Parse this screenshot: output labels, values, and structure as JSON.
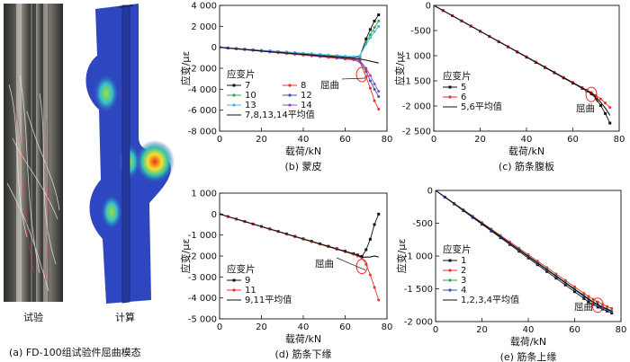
{
  "figure": {
    "label_a": "(a) FD-100组试验件屈曲模态",
    "label_test": "试验",
    "label_calc": "计算"
  },
  "chart_data": [
    {
      "id": "b",
      "type": "line",
      "caption": "(b) 蒙皮",
      "xlabel": "载荷/kN",
      "ylabel": "应变/με",
      "xlim": [
        0,
        80
      ],
      "ylim": [
        -8000,
        4000
      ],
      "xticks": [
        0,
        20,
        40,
        60,
        80
      ],
      "yticks": [
        4000,
        2000,
        0,
        -2000,
        -4000,
        -6000,
        -8000
      ],
      "ytick_labels": [
        "4 000",
        "2 000",
        "0",
        "-2 000",
        "-4 000",
        "-6 000",
        "-8 000"
      ],
      "legend_title": "应变片",
      "annotation": "屈曲",
      "legend_cols": 2,
      "series": [
        {
          "name": "7",
          "color": "#111111",
          "marker": "square",
          "x": [
            0,
            4,
            8,
            12,
            16,
            20,
            24,
            28,
            32,
            36,
            40,
            44,
            48,
            52,
            56,
            60,
            64,
            67,
            70,
            72,
            74,
            76
          ],
          "y": [
            0,
            -60,
            -120,
            -180,
            -240,
            -300,
            -360,
            -420,
            -480,
            -540,
            -600,
            -660,
            -720,
            -780,
            -840,
            -900,
            -960,
            -900,
            800,
            1700,
            2500,
            3100
          ]
        },
        {
          "name": "8",
          "color": "#e8322c",
          "marker": "circle",
          "x": [
            0,
            4,
            8,
            12,
            16,
            20,
            24,
            28,
            32,
            36,
            40,
            44,
            48,
            52,
            56,
            60,
            64,
            67,
            70,
            72,
            74,
            76
          ],
          "y": [
            0,
            -75,
            -150,
            -225,
            -300,
            -375,
            -450,
            -525,
            -600,
            -675,
            -750,
            -825,
            -900,
            -975,
            -1050,
            -1125,
            -1200,
            -1400,
            -2800,
            -3900,
            -5100,
            -5900
          ]
        },
        {
          "name": "10",
          "color": "#2ba84a",
          "marker": "circle",
          "x": [
            0,
            4,
            8,
            12,
            16,
            20,
            24,
            28,
            32,
            36,
            40,
            44,
            48,
            52,
            56,
            60,
            64,
            67,
            70,
            72,
            74,
            76
          ],
          "y": [
            0,
            -58,
            -116,
            -174,
            -232,
            -290,
            -348,
            -406,
            -464,
            -522,
            -580,
            -638,
            -696,
            -754,
            -812,
            -870,
            -928,
            -860,
            500,
            1200,
            1900,
            2500
          ]
        },
        {
          "name": "12",
          "color": "#3a4fc4",
          "marker": "circle",
          "x": [
            0,
            4,
            8,
            12,
            16,
            20,
            24,
            28,
            32,
            36,
            40,
            44,
            48,
            52,
            56,
            60,
            64,
            67,
            70,
            72,
            74,
            76
          ],
          "y": [
            0,
            -70,
            -140,
            -210,
            -280,
            -350,
            -420,
            -490,
            -560,
            -630,
            -700,
            -770,
            -840,
            -910,
            -980,
            -1050,
            -1120,
            -1300,
            -2300,
            -3200,
            -4000,
            -4700
          ]
        },
        {
          "name": "13",
          "color": "#43b7d6",
          "marker": "circle",
          "x": [
            0,
            4,
            8,
            12,
            16,
            20,
            24,
            28,
            32,
            36,
            40,
            44,
            48,
            52,
            56,
            60,
            64,
            67,
            70,
            72,
            74,
            76
          ],
          "y": [
            0,
            -56,
            -112,
            -168,
            -224,
            -280,
            -336,
            -392,
            -448,
            -504,
            -560,
            -616,
            -672,
            -728,
            -784,
            -840,
            -896,
            -820,
            300,
            900,
            1500,
            2000
          ]
        },
        {
          "name": "14",
          "color": "#9b45c6",
          "marker": "circle",
          "x": [
            0,
            4,
            8,
            12,
            16,
            20,
            24,
            28,
            32,
            36,
            40,
            44,
            48,
            52,
            56,
            60,
            64,
            67,
            70,
            72,
            74,
            76
          ],
          "y": [
            0,
            -68,
            -136,
            -204,
            -272,
            -340,
            -408,
            -476,
            -544,
            -612,
            -680,
            -748,
            -816,
            -884,
            -952,
            -1020,
            -1088,
            -1250,
            -2000,
            -2700,
            -3500,
            -4200
          ]
        },
        {
          "name": "7,8,13,14平均值",
          "color": "#111111",
          "marker": "none",
          "x": [
            0,
            20,
            40,
            60,
            64,
            67,
            70,
            76
          ],
          "y": [
            0,
            -350,
            -680,
            -1000,
            -1050,
            -1120,
            -1230,
            -1500
          ]
        }
      ]
    },
    {
      "id": "c",
      "type": "line",
      "caption": "(c) 筋条腹板",
      "xlabel": "载荷/kN",
      "ylabel": "应变/με",
      "xlim": [
        0,
        80
      ],
      "ylim": [
        -2500,
        0
      ],
      "xticks": [
        0,
        20,
        40,
        60,
        80
      ],
      "yticks": [
        0,
        -500,
        -1000,
        -1500,
        -2000,
        -2500
      ],
      "ytick_labels": [
        "0",
        "-500",
        "-1 000",
        "-1 500",
        "-2 000",
        "-2 500"
      ],
      "legend_title": "应变片",
      "annotation": "屈曲",
      "legend_cols": 1,
      "series": [
        {
          "name": "5",
          "color": "#111111",
          "marker": "square",
          "x": [
            0,
            4,
            8,
            12,
            16,
            20,
            24,
            28,
            32,
            36,
            40,
            44,
            48,
            52,
            56,
            60,
            64,
            66,
            68,
            70,
            72,
            74,
            76
          ],
          "y": [
            0,
            -103,
            -206,
            -309,
            -412,
            -515,
            -618,
            -721,
            -824,
            -927,
            -1030,
            -1133,
            -1236,
            -1339,
            -1442,
            -1545,
            -1648,
            -1700,
            -1760,
            -1850,
            -1990,
            -2150,
            -2340
          ]
        },
        {
          "name": "6",
          "color": "#e8322c",
          "marker": "circle",
          "x": [
            0,
            4,
            8,
            12,
            16,
            20,
            24,
            28,
            32,
            36,
            40,
            44,
            48,
            52,
            56,
            60,
            64,
            66,
            68,
            70,
            72,
            74,
            76
          ],
          "y": [
            0,
            -102,
            -204,
            -306,
            -408,
            -510,
            -612,
            -714,
            -816,
            -918,
            -1020,
            -1122,
            -1224,
            -1326,
            -1428,
            -1530,
            -1632,
            -1680,
            -1730,
            -1790,
            -1860,
            -1940,
            -2030
          ]
        },
        {
          "name": "5,6平均值",
          "color": "#111111",
          "marker": "none",
          "x": [
            0,
            20,
            40,
            60,
            66,
            68,
            70,
            72,
            74,
            76
          ],
          "y": [
            0,
            -512,
            -1025,
            -1537,
            -1690,
            -1745,
            -1820,
            -1925,
            -2045,
            -2185
          ]
        }
      ]
    },
    {
      "id": "d",
      "type": "line",
      "caption": "(d) 筋条下缘",
      "xlabel": "载荷/kN",
      "ylabel": "应变/με",
      "xlim": [
        0,
        80
      ],
      "ylim": [
        -5000,
        1000
      ],
      "xticks": [
        0,
        20,
        40,
        60,
        80
      ],
      "yticks": [
        1000,
        0,
        -1000,
        -2000,
        -3000,
        -4000,
        -5000
      ],
      "ytick_labels": [
        "1 000",
        "0",
        "-1 000",
        "-2 000",
        "-3 000",
        "-4 000",
        "-5 000"
      ],
      "legend_title": "应变片",
      "annotation": "屈曲",
      "legend_cols": 1,
      "series": [
        {
          "name": "9",
          "color": "#111111",
          "marker": "square",
          "x": [
            0,
            4,
            8,
            12,
            16,
            20,
            24,
            28,
            32,
            36,
            40,
            44,
            48,
            52,
            56,
            60,
            64,
            66,
            68,
            70,
            72,
            74,
            76
          ],
          "y": [
            0,
            -118,
            -236,
            -354,
            -472,
            -590,
            -708,
            -826,
            -944,
            -1062,
            -1180,
            -1298,
            -1416,
            -1534,
            -1652,
            -1770,
            -1888,
            -1950,
            -2020,
            -1700,
            -1200,
            -500,
            0
          ]
        },
        {
          "name": "11",
          "color": "#e8322c",
          "marker": "circle",
          "x": [
            0,
            4,
            8,
            12,
            16,
            20,
            24,
            28,
            32,
            36,
            40,
            44,
            48,
            52,
            56,
            60,
            64,
            66,
            68,
            70,
            72,
            74,
            76
          ],
          "y": [
            0,
            -120,
            -240,
            -360,
            -480,
            -600,
            -720,
            -840,
            -960,
            -1080,
            -1200,
            -1320,
            -1440,
            -1560,
            -1680,
            -1800,
            -1920,
            -2000,
            -2100,
            -2400,
            -2900,
            -3500,
            -4100
          ]
        },
        {
          "name": "9,11平均值",
          "color": "#111111",
          "marker": "none",
          "x": [
            0,
            20,
            40,
            60,
            66,
            68,
            70,
            72,
            74,
            76
          ],
          "y": [
            0,
            -595,
            -1190,
            -1785,
            -1975,
            -2060,
            -2050,
            -2050,
            -2000,
            -2050
          ]
        }
      ]
    },
    {
      "id": "e",
      "type": "line",
      "caption": "(e) 筋条上缘",
      "xlabel": "载荷/kN",
      "ylabel": "应变/με",
      "xlim": [
        0,
        80
      ],
      "ylim": [
        -2000,
        0
      ],
      "xticks": [
        0,
        20,
        40,
        60,
        80
      ],
      "yticks": [
        0,
        -500,
        -1000,
        -1500,
        -2000
      ],
      "ytick_labels": [
        "0",
        "-500",
        "-1 000",
        "-1 500",
        "-2 000"
      ],
      "legend_title": "应变片",
      "annotation": "屈曲",
      "legend_cols": 1,
      "series": [
        {
          "name": "1",
          "color": "#111111",
          "marker": "square",
          "x": [
            0,
            4,
            8,
            12,
            16,
            20,
            24,
            28,
            32,
            36,
            40,
            44,
            48,
            52,
            56,
            60,
            64,
            66,
            68,
            70,
            72,
            74,
            76
          ],
          "y": [
            0,
            -103,
            -206,
            -309,
            -412,
            -515,
            -618,
            -721,
            -824,
            -927,
            -1030,
            -1133,
            -1236,
            -1339,
            -1442,
            -1545,
            -1648,
            -1700,
            -1740,
            -1780,
            -1810,
            -1840,
            -1870
          ]
        },
        {
          "name": "2",
          "color": "#e8322c",
          "marker": "circle",
          "x": [
            0,
            4,
            8,
            12,
            16,
            20,
            24,
            28,
            32,
            36,
            40,
            44,
            48,
            52,
            56,
            60,
            64,
            66,
            68,
            70,
            72,
            74,
            76
          ],
          "y": [
            0,
            -98,
            -196,
            -294,
            -392,
            -490,
            -588,
            -686,
            -784,
            -882,
            -980,
            -1078,
            -1176,
            -1274,
            -1372,
            -1470,
            -1568,
            -1615,
            -1660,
            -1700,
            -1735,
            -1770,
            -1800
          ]
        },
        {
          "name": "3",
          "color": "#2ba84a",
          "marker": "circle",
          "x": [
            0,
            4,
            8,
            12,
            16,
            20,
            24,
            28,
            32,
            36,
            40,
            44,
            48,
            52,
            56,
            60,
            64,
            66,
            68,
            70,
            72,
            74,
            76
          ],
          "y": [
            0,
            -100,
            -200,
            -300,
            -400,
            -500,
            -600,
            -700,
            -800,
            -900,
            -1000,
            -1100,
            -1200,
            -1300,
            -1400,
            -1500,
            -1600,
            -1650,
            -1700,
            -1740,
            -1775,
            -1805,
            -1835
          ]
        },
        {
          "name": "4",
          "color": "#3a4fc4",
          "marker": "circle",
          "x": [
            0,
            4,
            8,
            12,
            16,
            20,
            24,
            28,
            32,
            36,
            40,
            44,
            48,
            52,
            56,
            60,
            64,
            66,
            68,
            70,
            72,
            74,
            76
          ],
          "y": [
            0,
            -101,
            -202,
            -303,
            -404,
            -505,
            -606,
            -707,
            -808,
            -909,
            -1010,
            -1111,
            -1212,
            -1313,
            -1414,
            -1515,
            -1616,
            -1665,
            -1715,
            -1755,
            -1790,
            -1820,
            -1850
          ]
        },
        {
          "name": "1,2,3,4平均值",
          "color": "#111111",
          "marker": "none",
          "x": [
            0,
            20,
            40,
            60,
            66,
            70,
            74,
            76
          ],
          "y": [
            0,
            -503,
            -1005,
            -1508,
            -1657,
            -1744,
            -1809,
            -1839
          ]
        }
      ]
    }
  ]
}
